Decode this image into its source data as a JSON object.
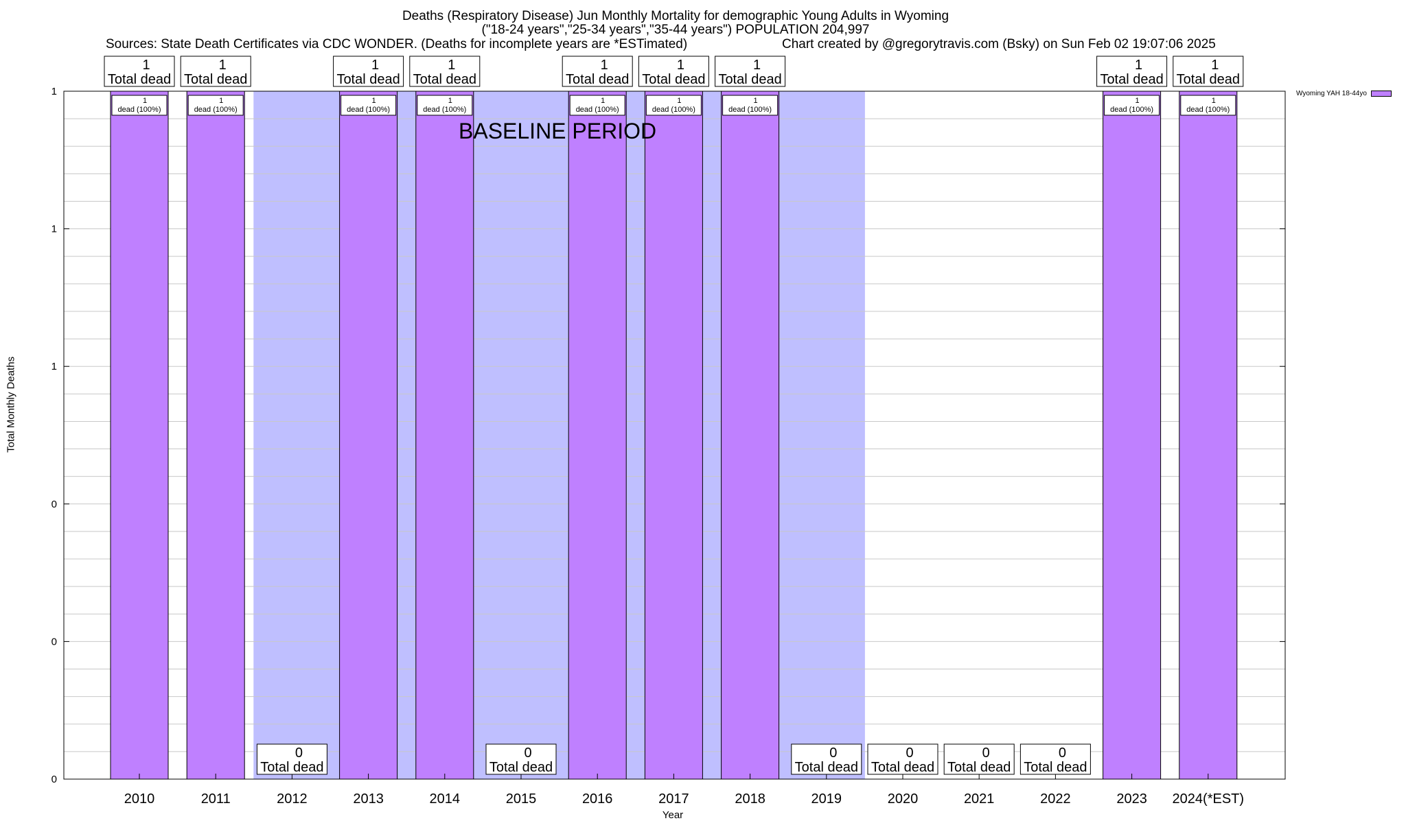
{
  "header": {
    "title_line1": "Deaths (Respiratory Disease) Jun Monthly Mortality for demographic Young Adults in Wyoming",
    "title_line2": "(\"18-24 years\",\"25-34 years\",\"35-44 years\") POPULATION 204,997",
    "sources": "Sources: State Death Certificates via CDC WONDER. (Deaths for incomplete years are *ESTimated)",
    "credit": "Chart created by @gregorytravis.com (Bsky) on Sun Feb 02 19:07:06 2025"
  },
  "chart_data": {
    "type": "bar",
    "categories": [
      "2010",
      "2011",
      "2012",
      "2013",
      "2014",
      "2015",
      "2016",
      "2017",
      "2018",
      "2019",
      "2020",
      "2021",
      "2022",
      "2023",
      "2024(*EST)"
    ],
    "series": [
      {
        "name": "Wyoming YAH 18-44yo",
        "values": [
          1,
          1,
          0,
          1,
          1,
          0,
          1,
          1,
          1,
          0,
          0,
          0,
          0,
          1,
          1
        ],
        "color": "#bf80ff"
      }
    ],
    "total_labels": [
      "1",
      "1",
      "0",
      "1",
      "1",
      "0",
      "1",
      "1",
      "1",
      "0",
      "0",
      "0",
      "0",
      "1",
      "1"
    ],
    "total_suffix": "Total dead",
    "pct_top_labels": [
      "1",
      "1",
      "",
      "1",
      "1",
      "",
      "1",
      "1",
      "1",
      "",
      "",
      "",
      "",
      "1",
      "1"
    ],
    "pct_bottom_labels": [
      "dead (100%)",
      "dead (100%)",
      "",
      "dead (100%)",
      "dead (100%)",
      "",
      "dead (100%)",
      "dead (100%)",
      "dead (100%)",
      "",
      "",
      "",
      "",
      "dead (100%)",
      "dead (100%)"
    ],
    "ylim": [
      0,
      1
    ],
    "ytick_labels": [
      "0",
      "0",
      "0",
      "1",
      "1",
      "1"
    ],
    "xlabel": "Year",
    "ylabel": "Total Monthly Deaths",
    "baseline": {
      "label": "BASELINE PERIOD",
      "from": "2012",
      "to": "2019",
      "color": "#bfbfff"
    },
    "legend_position": "top-right",
    "grid": true
  }
}
